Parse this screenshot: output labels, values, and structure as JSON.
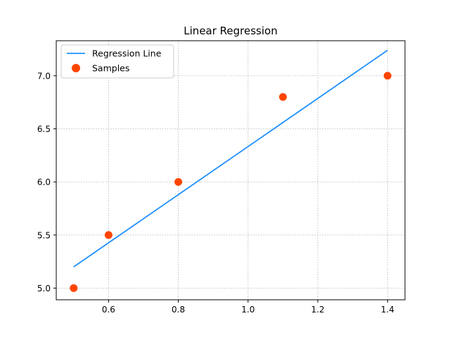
{
  "chart_data": {
    "type": "scatter",
    "title": "Linear Regression",
    "xlabel": "",
    "ylabel": "",
    "xlim": [
      0.45,
      1.45
    ],
    "ylim": [
      4.89,
      7.33
    ],
    "x_ticks": [
      0.6,
      0.8,
      1.0,
      1.2,
      1.4
    ],
    "x_tick_labels": [
      "0.6",
      "0.8",
      "1.0",
      "1.2",
      "1.4"
    ],
    "y_ticks": [
      5.0,
      5.5,
      6.0,
      6.5,
      7.0
    ],
    "y_tick_labels": [
      "5.0",
      "5.5",
      "6.0",
      "6.5",
      "7.0"
    ],
    "grid": true,
    "legend_position": "upper-left",
    "series": [
      {
        "name": "Regression Line",
        "kind": "line",
        "color": "#1e90ff",
        "x": [
          0.5,
          1.4
        ],
        "y": [
          5.2,
          7.24
        ]
      },
      {
        "name": "Samples",
        "kind": "scatter",
        "color": "#ff4500",
        "x": [
          0.5,
          0.6,
          0.8,
          1.1,
          1.4
        ],
        "y": [
          5.0,
          5.5,
          6.0,
          6.8,
          7.0
        ]
      }
    ]
  }
}
